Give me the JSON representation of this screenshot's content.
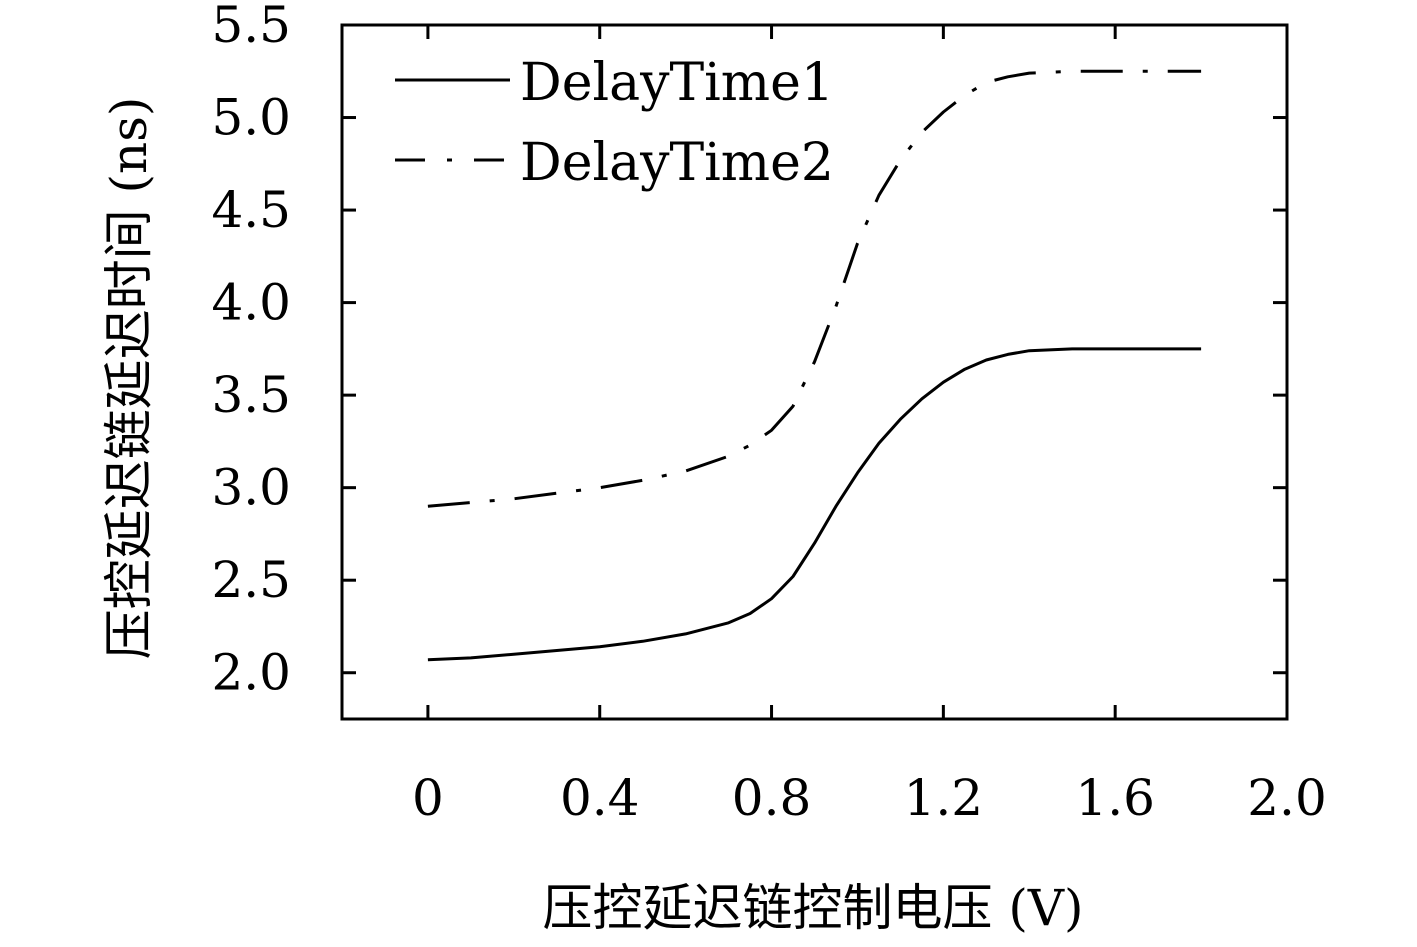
{
  "chart_data": {
    "type": "line",
    "title": "",
    "xlabel": "压控延迟链控制电压 (V)",
    "ylabel": "压控延迟链延迟时间 (ns)",
    "xlim": [
      -0.2,
      2.0
    ],
    "ylim": [
      1.75,
      5.5
    ],
    "xticks": [
      0,
      0.4,
      0.8,
      1.2,
      1.6,
      2.0
    ],
    "xtick_labels": [
      "0",
      "0.4",
      "0.8",
      "1.2",
      "1.6",
      "2.0"
    ],
    "yticks": [
      2.0,
      2.5,
      3.0,
      3.5,
      4.0,
      4.5,
      5.0,
      5.5
    ],
    "ytick_labels": [
      "2.0",
      "2.5",
      "3.0",
      "3.5",
      "4.0",
      "4.5",
      "5.0",
      "5.5"
    ],
    "grid": false,
    "legend_position": "top-left",
    "series": [
      {
        "name": "DelayTime1",
        "style": "solid",
        "x": [
          0,
          0.1,
          0.2,
          0.3,
          0.4,
          0.5,
          0.6,
          0.7,
          0.75,
          0.8,
          0.85,
          0.9,
          0.95,
          1.0,
          1.05,
          1.1,
          1.15,
          1.2,
          1.25,
          1.3,
          1.35,
          1.4,
          1.5,
          1.6,
          1.7,
          1.8
        ],
        "y": [
          2.07,
          2.08,
          2.1,
          2.12,
          2.14,
          2.17,
          2.21,
          2.27,
          2.32,
          2.4,
          2.52,
          2.7,
          2.9,
          3.08,
          3.24,
          3.37,
          3.48,
          3.57,
          3.64,
          3.69,
          3.72,
          3.74,
          3.75,
          3.75,
          3.75,
          3.75
        ]
      },
      {
        "name": "DelayTime2",
        "style": "dash-dot",
        "x": [
          0,
          0.1,
          0.2,
          0.3,
          0.4,
          0.5,
          0.6,
          0.7,
          0.75,
          0.8,
          0.85,
          0.9,
          0.95,
          1.0,
          1.05,
          1.1,
          1.15,
          1.2,
          1.25,
          1.3,
          1.35,
          1.4,
          1.5,
          1.6,
          1.7,
          1.8
        ],
        "y": [
          2.9,
          2.92,
          2.94,
          2.97,
          3.0,
          3.04,
          3.09,
          3.17,
          3.23,
          3.31,
          3.44,
          3.68,
          3.98,
          4.32,
          4.58,
          4.77,
          4.92,
          5.03,
          5.12,
          5.19,
          5.22,
          5.24,
          5.25,
          5.25,
          5.25,
          5.25
        ]
      }
    ]
  }
}
